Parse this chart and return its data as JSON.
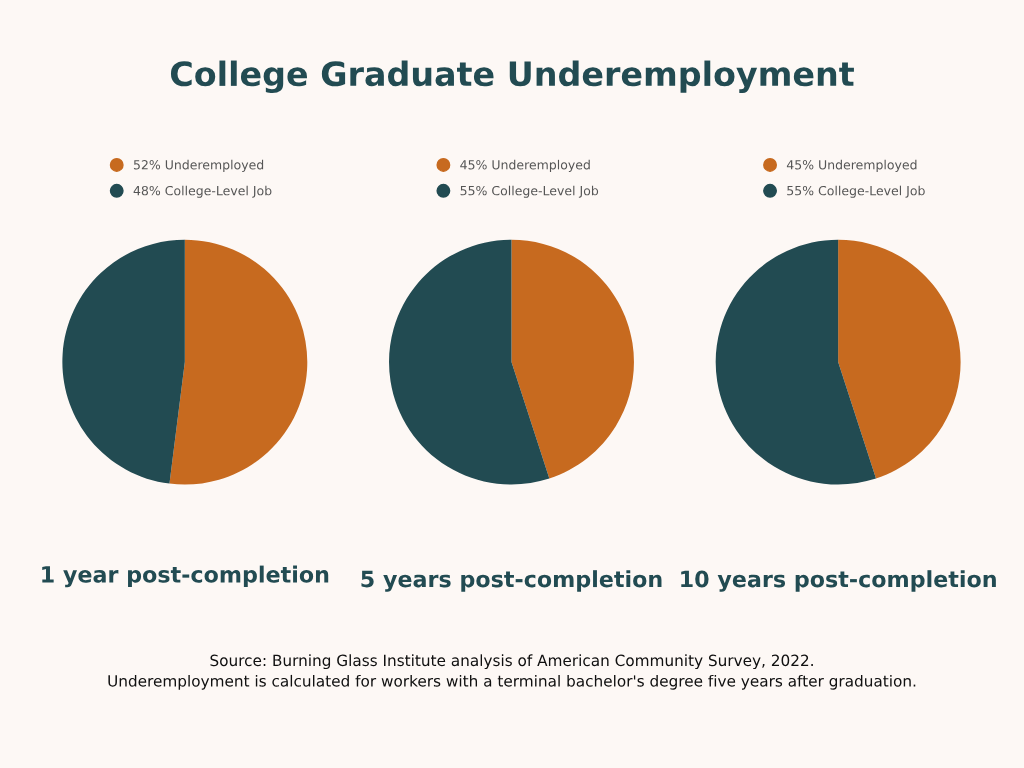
{
  "chart_data": [
    {
      "type": "other",
      "title": "College Graduate Underemployment"
    },
    {
      "type": "pie",
      "title": "1 year post-completion",
      "categories": [
        "52% Underemployed",
        "48% College-Level Job"
      ],
      "values": [
        52,
        48
      ],
      "colors": [
        "#c76a1f",
        "#224b52"
      ],
      "legend": "top left"
    },
    {
      "type": "pie",
      "title": "5 years post-completion",
      "categories": [
        "45% Underemployed",
        "55% College-Level Job"
      ],
      "values": [
        45,
        55
      ],
      "colors": [
        "#c76a1f",
        "#224b52"
      ],
      "legend": "top left"
    },
    {
      "type": "pie",
      "title": "10 years post-completion",
      "categories": [
        "45% Underemployed",
        "55% College-Level Job"
      ],
      "values": [
        45,
        55
      ],
      "colors": [
        "#c76a1f",
        "#224b52"
      ],
      "legend": "top left"
    },
    {
      "type": "other",
      "annotations": [
        "Source: Burning Glass Institute analysis of American Community Survey, 2022.\nUnderemployment is calculated for workers with a terminal bachelor's degree five years after graduation."
      ]
    }
  ]
}
